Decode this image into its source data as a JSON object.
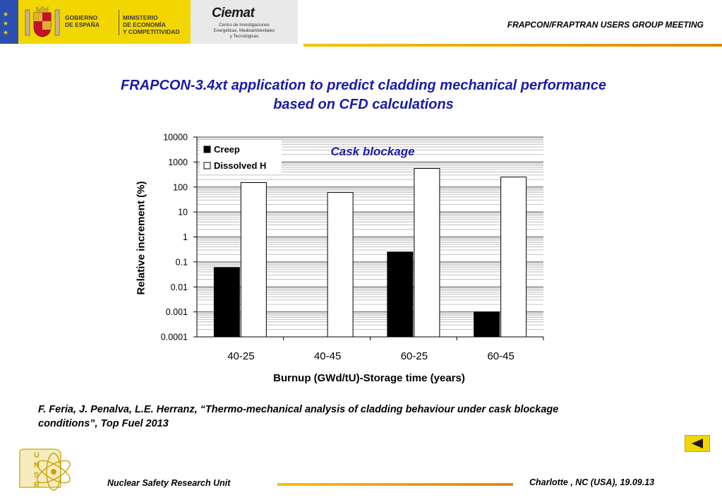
{
  "header": {
    "gov_line1": "GOBIERNO",
    "gov_line2": "DE ESPAÑA",
    "ministry_line1": "MINISTERIO",
    "ministry_line2": "DE ECONOMÍA",
    "ministry_line3": "Y COMPETITIVIDAD",
    "ciemat_logo": "Ciemat",
    "ciemat_sub1": "Centro de Investigaciones",
    "ciemat_sub2": "Energéticas, Medioambientales",
    "ciemat_sub3": "y Tecnológicas",
    "meeting": "FRAPCON/FRAPTRAN USERS GROUP MEETING"
  },
  "slide": {
    "title_line1": "FRAPCON-3.4xt application to predict cladding mechanical performance",
    "title_line2": "based on CFD calculations",
    "reference_line1": "F. Feria, J. Penalva, L.E. Herranz, “Thermo-mechanical analysis of cladding behaviour under cask blockage",
    "reference_line2": "conditions”, Top Fuel 2013"
  },
  "footer": {
    "unit": "Nuclear Safety Research Unit",
    "place_date": "Charlotte , NC (USA), 19.09.13",
    "logo_letters": [
      "U",
      "N",
      "S",
      "R"
    ]
  },
  "colors": {
    "title_blue": "#1a1aa8",
    "accent_yellow": "#f2d600",
    "creep": "#000000",
    "dissolved_h": "#ffffff"
  },
  "chart_data": {
    "type": "bar",
    "title": "",
    "annotation": "Cask blockage",
    "xlabel": "Burnup (GWd/tU)-Storage time (years)",
    "ylabel": "Relative increment (%)",
    "yscale": "log",
    "ylim": [
      0.0001,
      10000
    ],
    "yticks": [
      "0.0001",
      "0.001",
      "0.01",
      "0.1",
      "1",
      "10",
      "100",
      "1000",
      "10000"
    ],
    "categories": [
      "40-25",
      "40-45",
      "60-25",
      "60-45"
    ],
    "series": [
      {
        "name": "Creep",
        "color": "#000000",
        "values": [
          0.06,
          null,
          0.25,
          0.001
        ]
      },
      {
        "name": "Dissolved H",
        "color": "#ffffff",
        "values": [
          150,
          60,
          550,
          250
        ]
      }
    ],
    "grid": true,
    "legend": "top-left"
  }
}
